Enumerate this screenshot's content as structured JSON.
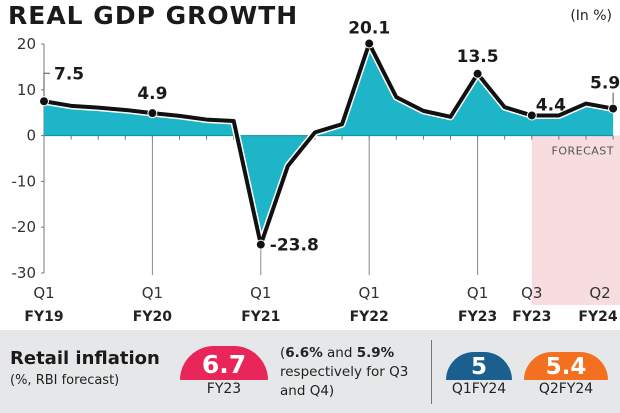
{
  "chart_data": {
    "type": "area",
    "title": "REAL GDP GROWTH",
    "unit_label": "(In %)",
    "ylim": [
      -30,
      20
    ],
    "yticks": [
      "20",
      "10",
      "0",
      "-10",
      "-20",
      "-30"
    ],
    "ytick_values": [
      20,
      10,
      0,
      -10,
      -20,
      -30
    ],
    "x": [
      "Q1 FY19",
      "Q2 FY19",
      "Q3 FY19",
      "Q4 FY19",
      "Q1 FY20",
      "Q2 FY20",
      "Q3 FY20",
      "Q4 FY20",
      "Q1 FY21",
      "Q2 FY21",
      "Q3 FY21",
      "Q4 FY21",
      "Q1 FY22",
      "Q2 FY22",
      "Q3 FY22",
      "Q4 FY22",
      "Q1 FY23",
      "Q2 FY23",
      "Q3 FY23",
      "Q4 FY23",
      "Q1 FY24",
      "Q2 FY24"
    ],
    "values": [
      7.5,
      6.5,
      6.1,
      5.6,
      4.9,
      4.3,
      3.5,
      3.2,
      -23.8,
      -6.6,
      0.7,
      2.5,
      20.1,
      8.4,
      5.4,
      4.1,
      13.5,
      6.2,
      4.4,
      4.4,
      7.0,
      5.9
    ],
    "xtick_labels": [
      {
        "index": 0,
        "q": "Q1",
        "fy": "FY19"
      },
      {
        "index": 4,
        "q": "Q1",
        "fy": "FY20"
      },
      {
        "index": 8,
        "q": "Q1",
        "fy": "FY21"
      },
      {
        "index": 12,
        "q": "Q1",
        "fy": "FY22"
      },
      {
        "index": 16,
        "q": "Q1",
        "fy": "FY23"
      },
      {
        "index": 18,
        "q": "Q3",
        "fy": "FY23"
      },
      {
        "index": 21,
        "q": "Q2",
        "fy": "FY24"
      }
    ],
    "data_labels": [
      {
        "index": 0,
        "text": "7.5"
      },
      {
        "index": 4,
        "text": "4.9"
      },
      {
        "index": 8,
        "text": "-23.8"
      },
      {
        "index": 12,
        "text": "20.1"
      },
      {
        "index": 16,
        "text": "13.5"
      },
      {
        "index": 18,
        "text": "4.4"
      },
      {
        "index": 21,
        "text": "5.9"
      }
    ],
    "forecast_start_index": 18,
    "forecast_label": "FORECAST",
    "colors": {
      "area": "#1fb5c9",
      "line": "#111111",
      "forecast_bg": "#f7dde0"
    }
  },
  "inflation": {
    "title": "Retail inflation",
    "subtitle": "(%, RBI forecast)",
    "fy23_value": "6.7",
    "fy23_label": "FY23",
    "note_pre": "(",
    "note_v1": "6.6%",
    "note_mid": " and ",
    "note_v2": "5.9%",
    "note_post": " respectively for Q3 and Q4)",
    "q1_value": "5",
    "q1_label": "Q1FY24",
    "q2_value": "5.4",
    "q2_label": "Q2FY24",
    "colors": {
      "fy23": "#e8265a",
      "q1": "#1b5f8f",
      "q2": "#f37021",
      "panel": "#e6e7e8"
    }
  }
}
